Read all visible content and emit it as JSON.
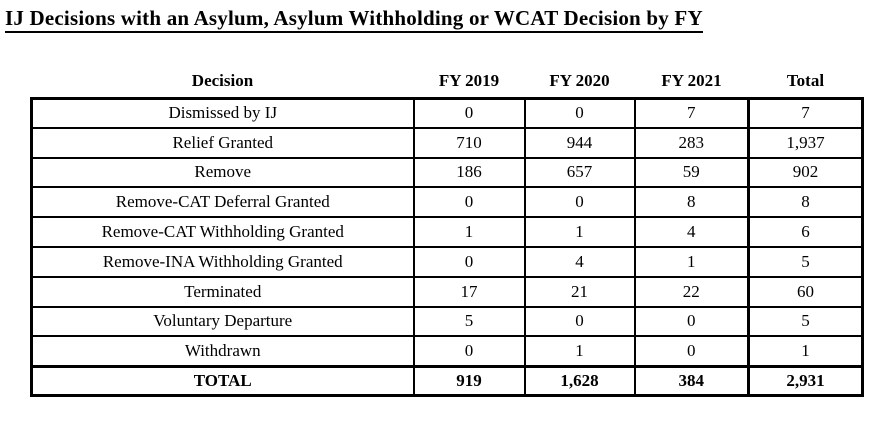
{
  "title": "IJ Decisions with an Asylum, Asylum Withholding or WCAT Decision by FY",
  "table": {
    "columns": [
      "Decision",
      "FY 2019",
      "FY 2020",
      "FY 2021",
      "Total"
    ],
    "rows": [
      [
        "Dismissed by IJ",
        "0",
        "0",
        "7",
        "7"
      ],
      [
        "Relief Granted",
        "710",
        "944",
        "283",
        "1,937"
      ],
      [
        "Remove",
        "186",
        "657",
        "59",
        "902"
      ],
      [
        "Remove-CAT Deferral Granted",
        "0",
        "0",
        "8",
        "8"
      ],
      [
        "Remove-CAT Withholding Granted",
        "1",
        "1",
        "4",
        "6"
      ],
      [
        "Remove-INA Withholding Granted",
        "0",
        "4",
        "1",
        "5"
      ],
      [
        "Terminated",
        "17",
        "21",
        "22",
        "60"
      ],
      [
        "Voluntary Departure",
        "5",
        "0",
        "0",
        "5"
      ],
      [
        "Withdrawn",
        "0",
        "1",
        "0",
        "1"
      ]
    ],
    "total_row": [
      "TOTAL",
      "919",
      "1,628",
      "384",
      "2,931"
    ]
  },
  "chart_data": {
    "type": "table",
    "title": "IJ Decisions with an Asylum, Asylum Withholding or WCAT Decision by FY",
    "columns": [
      "Decision",
      "FY 2019",
      "FY 2020",
      "FY 2021",
      "Total"
    ],
    "series": [
      {
        "name": "Dismissed by IJ",
        "values": [
          0,
          0,
          7,
          7
        ]
      },
      {
        "name": "Relief Granted",
        "values": [
          710,
          944,
          283,
          1937
        ]
      },
      {
        "name": "Remove",
        "values": [
          186,
          657,
          59,
          902
        ]
      },
      {
        "name": "Remove-CAT Deferral Granted",
        "values": [
          0,
          0,
          8,
          8
        ]
      },
      {
        "name": "Remove-CAT Withholding Granted",
        "values": [
          1,
          1,
          4,
          6
        ]
      },
      {
        "name": "Remove-INA Withholding Granted",
        "values": [
          0,
          4,
          1,
          5
        ]
      },
      {
        "name": "Terminated",
        "values": [
          17,
          21,
          22,
          60
        ]
      },
      {
        "name": "Voluntary Departure",
        "values": [
          5,
          0,
          0,
          5
        ]
      },
      {
        "name": "Withdrawn",
        "values": [
          0,
          1,
          0,
          1
        ]
      },
      {
        "name": "TOTAL",
        "values": [
          919,
          1628,
          384,
          2931
        ]
      }
    ]
  }
}
